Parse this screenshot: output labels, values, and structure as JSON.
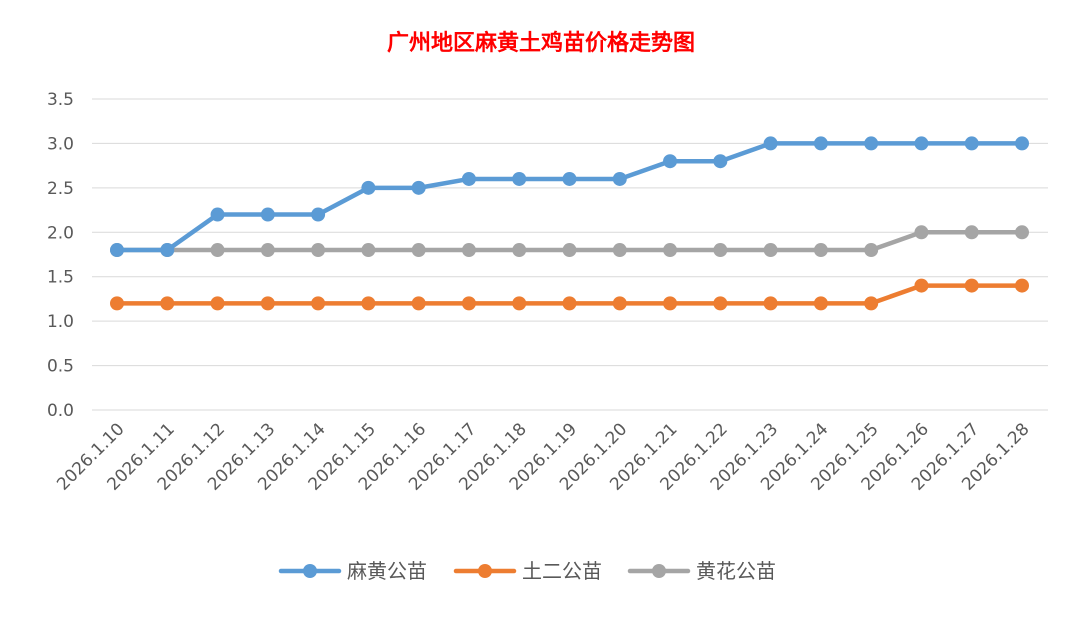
{
  "chart_data": {
    "type": "line",
    "title": "广州地区麻黄土鸡苗价格走势图",
    "xlabel": "",
    "ylabel": "",
    "ylim": [
      0,
      3.5
    ],
    "yticks": [
      "0.0",
      "0.5",
      "1.0",
      "1.5",
      "2.0",
      "2.5",
      "3.0",
      "3.5"
    ],
    "grid": true,
    "legend_position": "bottom",
    "categories": [
      "2026.1.10",
      "2026.1.11",
      "2026.1.12",
      "2026.1.13",
      "2026.1.14",
      "2026.1.15",
      "2026.1.16",
      "2026.1.17",
      "2026.1.18",
      "2026.1.19",
      "2026.1.20",
      "2026.1.21",
      "2026.1.22",
      "2026.1.23",
      "2026.1.24",
      "2026.1.25",
      "2026.1.26",
      "2026.1.27",
      "2026.1.28"
    ],
    "series": [
      {
        "name": "麻黄公苗",
        "color": "#5b9bd5",
        "values": [
          1.8,
          1.8,
          2.2,
          2.2,
          2.2,
          2.5,
          2.5,
          2.6,
          2.6,
          2.6,
          2.6,
          2.8,
          2.8,
          3.0,
          3.0,
          3.0,
          3.0,
          3.0,
          3.0
        ]
      },
      {
        "name": "土二公苗",
        "color": "#ed7d31",
        "values": [
          1.2,
          1.2,
          1.2,
          1.2,
          1.2,
          1.2,
          1.2,
          1.2,
          1.2,
          1.2,
          1.2,
          1.2,
          1.2,
          1.2,
          1.2,
          1.2,
          1.4,
          1.4,
          1.4
        ]
      },
      {
        "name": "黄花公苗",
        "color": "#a5a5a5",
        "values": [
          1.8,
          1.8,
          1.8,
          1.8,
          1.8,
          1.8,
          1.8,
          1.8,
          1.8,
          1.8,
          1.8,
          1.8,
          1.8,
          1.8,
          1.8,
          1.8,
          2.0,
          2.0,
          2.0
        ]
      }
    ]
  }
}
